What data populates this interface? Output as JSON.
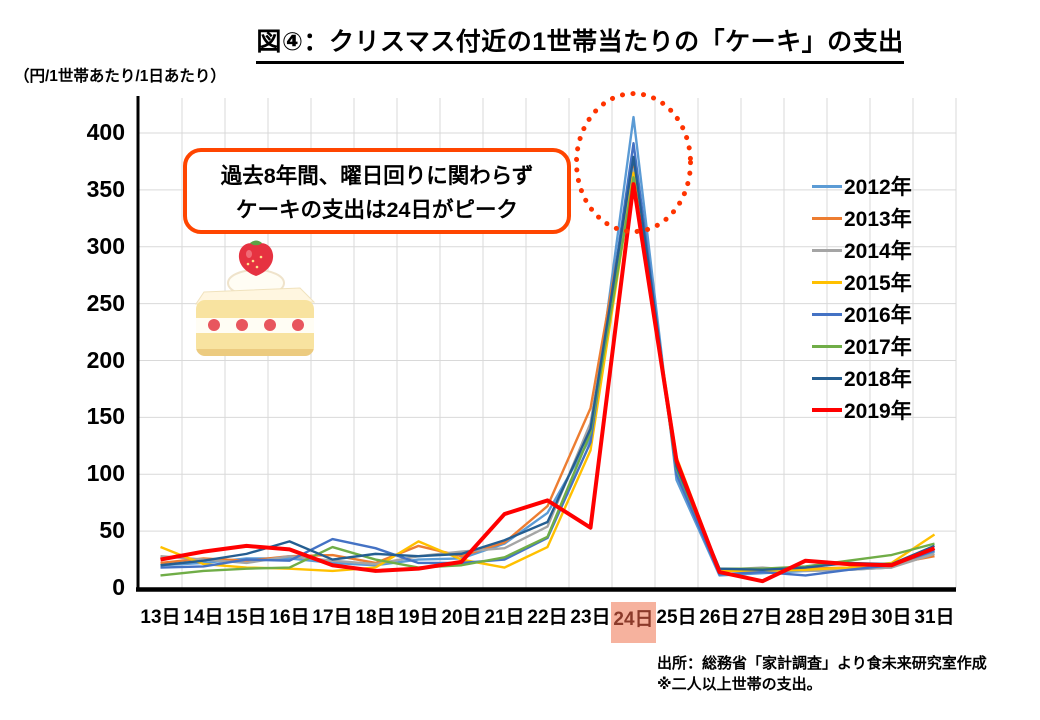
{
  "title": "図④：クリスマス付近の1世帯当たりの「ケーキ」の支出",
  "unit_label": "（円/1世帯あたり/1日あたり）",
  "annotation": {
    "line1": "過去8年間、曜日回りに関わらず",
    "line2": "ケーキの支出は24日がピーク",
    "border_color": "#FF4500"
  },
  "source": {
    "line1": "出所：総務省「家計調査」より食未来研究室作成",
    "line2": "※二人以上世帯の支出。"
  },
  "highlight": {
    "category": "24日",
    "bg_color": "#F6B29E",
    "text_color": "#8B3A2A"
  },
  "chart_data": {
    "type": "line",
    "title": "図④：クリスマス付近の1世帯当たりの「ケーキ」の支出",
    "ylabel": "円/1世帯あたり/1日あたり",
    "categories": [
      "13日",
      "14日",
      "15日",
      "16日",
      "17日",
      "18日",
      "19日",
      "20日",
      "21日",
      "22日",
      "23日",
      "24日",
      "25日",
      "26日",
      "27日",
      "28日",
      "29日",
      "30日",
      "31日"
    ],
    "y_ticks": [
      0,
      50,
      100,
      150,
      200,
      250,
      300,
      350,
      400
    ],
    "ylim": [
      0,
      430
    ],
    "grid": true,
    "legend_position": "right-overlay",
    "series": [
      {
        "name": "2012年",
        "color": "#5B9BD5",
        "width": 2.4,
        "values": [
          20,
          22,
          26,
          26,
          22,
          20,
          25,
          26,
          39,
          66,
          132,
          414,
          95,
          11,
          13,
          15,
          16,
          18,
          32
        ]
      },
      {
        "name": "2013年",
        "color": "#ED7D31",
        "width": 2.4,
        "values": [
          22,
          26,
          24,
          28,
          29,
          22,
          37,
          28,
          40,
          72,
          158,
          372,
          110,
          16,
          16,
          17,
          18,
          21,
          28
        ]
      },
      {
        "name": "2014年",
        "color": "#A5A5A5",
        "width": 2.4,
        "values": [
          28,
          25,
          22,
          28,
          24,
          21,
          28,
          32,
          35,
          54,
          145,
          368,
          103,
          16,
          18,
          15,
          16,
          18,
          30
        ]
      },
      {
        "name": "2015年",
        "color": "#FFC000",
        "width": 2.4,
        "values": [
          36,
          21,
          18,
          17,
          15,
          18,
          41,
          25,
          18,
          36,
          121,
          365,
          115,
          15,
          15,
          16,
          18,
          22,
          47
        ]
      },
      {
        "name": "2016年",
        "color": "#4472C4",
        "width": 2.4,
        "values": [
          18,
          19,
          25,
          24,
          43,
          35,
          22,
          22,
          25,
          44,
          128,
          391,
          100,
          12,
          14,
          11,
          16,
          20,
          33
        ]
      },
      {
        "name": "2017年",
        "color": "#70AD47",
        "width": 2.4,
        "values": [
          11,
          15,
          17,
          18,
          36,
          25,
          18,
          20,
          27,
          45,
          136,
          361,
          105,
          17,
          17,
          19,
          24,
          29,
          39
        ]
      },
      {
        "name": "2018年",
        "color": "#255E91",
        "width": 2.4,
        "values": [
          20,
          24,
          30,
          41,
          25,
          30,
          28,
          30,
          42,
          58,
          140,
          379,
          107,
          17,
          16,
          18,
          22,
          21,
          37
        ]
      },
      {
        "name": "2019年",
        "color": "#FF0000",
        "width": 4,
        "values": [
          25,
          32,
          37,
          34,
          20,
          15,
          17,
          23,
          65,
          77,
          53,
          355,
          112,
          14,
          6,
          24,
          21,
          20,
          35
        ]
      }
    ],
    "peak_circle": {
      "category": "24日",
      "center_value": 374,
      "color": "#FF3300"
    }
  }
}
